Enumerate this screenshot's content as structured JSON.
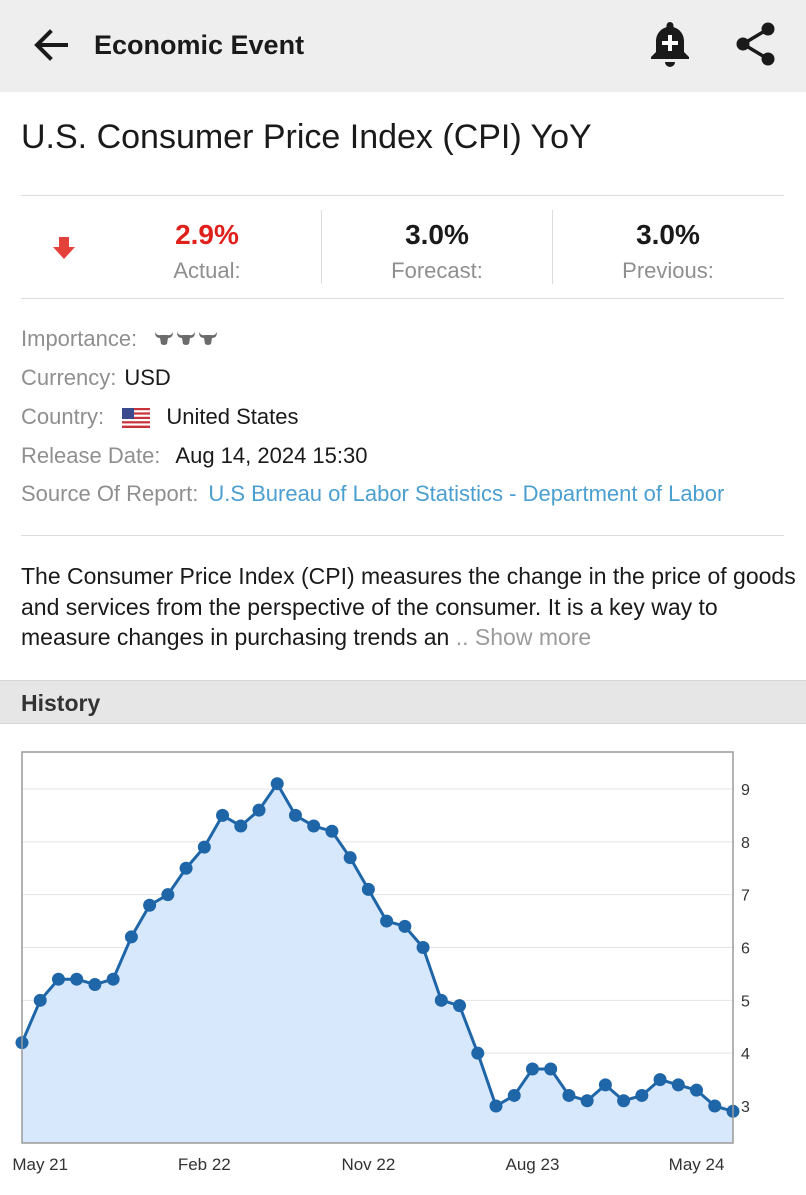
{
  "appbar": {
    "title": "Economic Event",
    "icons": [
      "back-arrow-icon",
      "add-alert-bell-icon",
      "share-icon"
    ]
  },
  "event": {
    "title": "U.S. Consumer Price Index (CPI) YoY",
    "trend_icon": "down-arrow-icon",
    "trend_color": "#e0201b",
    "actual": {
      "value": "2.9%",
      "label": "Actual:"
    },
    "forecast": {
      "value": "3.0%",
      "label": "Forecast:"
    },
    "previous": {
      "value": "3.0%",
      "label": "Previous:"
    }
  },
  "details": {
    "importance_label": "Importance:",
    "importance_level": 3,
    "importance_icon": "bull-icon",
    "currency_label": "Currency:",
    "currency_value": "USD",
    "country_label": "Country:",
    "country_flag_icon": "us-flag-icon",
    "country_value": "United States",
    "release_label": "Release Date:",
    "release_value": "Aug 14, 2024 15:30",
    "source_label": "Source Of Report:",
    "source_value": "U.S Bureau of Labor Statistics - Department of Labor"
  },
  "description": {
    "text": "The Consumer Price Index (CPI) measures the change in the price of goods and services from the perspective of the consumer. It is a key way to measure changes in purchasing trends an",
    "more": " .. Show more"
  },
  "history": {
    "title": "History"
  },
  "chart_data": {
    "type": "area",
    "x": [
      "Apr 21",
      "May 21",
      "Jun 21",
      "Jul 21",
      "Aug 21",
      "Sep 21",
      "Oct 21",
      "Nov 21",
      "Dec 21",
      "Jan 22",
      "Feb 22",
      "Mar 22",
      "Apr 22",
      "May 22",
      "Jun 22",
      "Jul 22",
      "Aug 22",
      "Sep 22",
      "Oct 22",
      "Nov 22",
      "Dec 22",
      "Jan 23",
      "Feb 23",
      "Mar 23",
      "Apr 23",
      "May 23",
      "Jun 23",
      "Jul 23",
      "Aug 23",
      "Sep 23",
      "Oct 23",
      "Nov 23",
      "Dec 23",
      "Jan 24",
      "Feb 24",
      "Mar 24",
      "Apr 24",
      "May 24",
      "Jun 24",
      "Jul 24"
    ],
    "values": [
      4.2,
      5.0,
      5.4,
      5.4,
      5.3,
      5.4,
      6.2,
      6.8,
      7.0,
      7.5,
      7.9,
      8.5,
      8.3,
      8.6,
      9.1,
      8.5,
      8.3,
      8.2,
      7.7,
      7.1,
      6.5,
      6.4,
      6.0,
      5.0,
      4.9,
      4.0,
      3.0,
      3.2,
      3.7,
      3.7,
      3.2,
      3.1,
      3.4,
      3.1,
      3.2,
      3.5,
      3.4,
      3.3,
      3.0,
      2.9
    ],
    "x_tick_labels": [
      "May 21",
      "Feb 22",
      "Nov 22",
      "Aug 23",
      "May 24"
    ],
    "y_ticks": [
      3,
      4,
      5,
      6,
      7,
      8,
      9
    ],
    "ylim": [
      2.3,
      9.7
    ],
    "y_axis_position": "right",
    "grid": true,
    "line_color": "#1f66a8",
    "fill_color": "#d8e8fc",
    "title": "",
    "xlabel": "",
    "ylabel": ""
  }
}
